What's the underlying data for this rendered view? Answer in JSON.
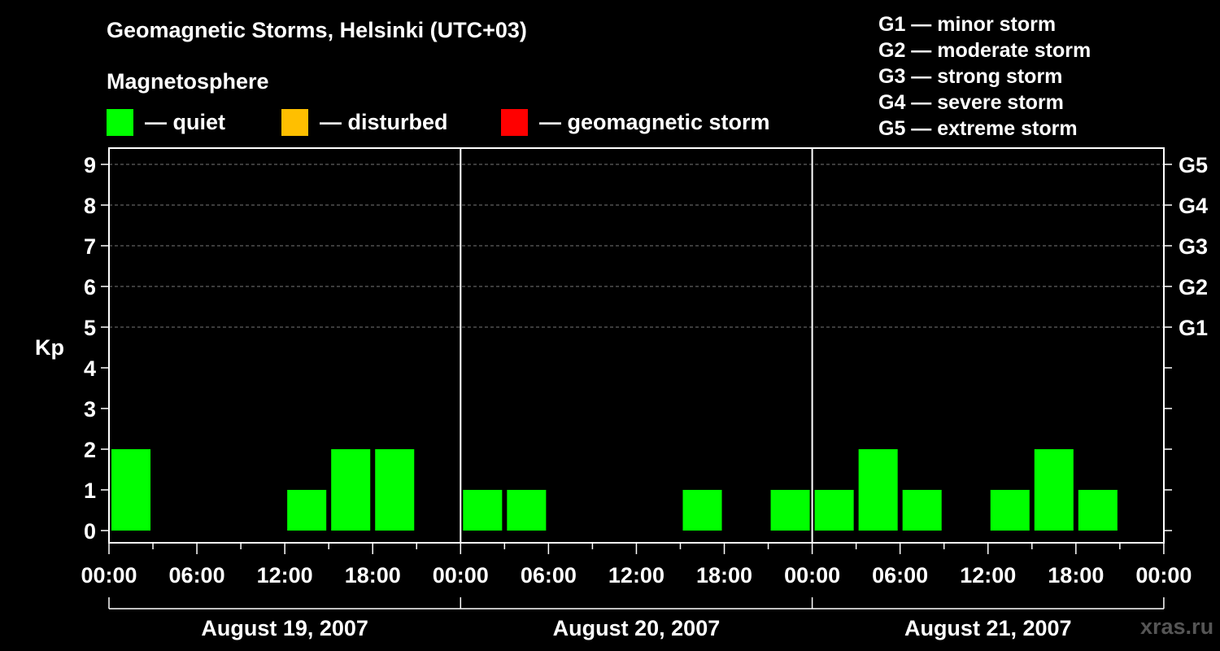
{
  "header": {
    "title": "Geomagnetic Storms, Helsinki (UTC+03)",
    "subtitle": "Magnetosphere"
  },
  "legend": [
    {
      "color": "#00ff00",
      "label": "— quiet"
    },
    {
      "color": "#ffbf00",
      "label": "— disturbed"
    },
    {
      "color": "#ff0000",
      "label": "— geomagnetic storm"
    }
  ],
  "storm_scale": [
    "G1 — minor storm",
    "G2 — moderate storm",
    "G3 — strong storm",
    "G4 — severe storm",
    "G5 — extreme storm"
  ],
  "watermark": "xras.ru",
  "chart_data": {
    "type": "bar",
    "title": "Geomagnetic Storms, Helsinki (UTC+03)",
    "ylabel": "Kp",
    "ylim": [
      0,
      9
    ],
    "yticks": [
      0,
      1,
      2,
      3,
      4,
      5,
      6,
      7,
      8,
      9
    ],
    "right_axis": [
      {
        "kp": 5,
        "label": "G1"
      },
      {
        "kp": 6,
        "label": "G2"
      },
      {
        "kp": 7,
        "label": "G3"
      },
      {
        "kp": 8,
        "label": "G4"
      },
      {
        "kp": 9,
        "label": "G5"
      }
    ],
    "xtick_labels": [
      "00:00",
      "06:00",
      "12:00",
      "18:00",
      "00:00",
      "06:00",
      "12:00",
      "18:00",
      "00:00",
      "06:00",
      "12:00",
      "18:00",
      "00:00"
    ],
    "days": [
      "August 19, 2007",
      "August 20, 2007",
      "August 21, 2007"
    ],
    "interval_hours": 3,
    "bar_color": "#00ff00",
    "values": [
      2,
      0,
      0,
      0,
      1,
      2,
      2,
      0,
      1,
      1,
      0,
      0,
      0,
      1,
      0,
      1,
      1,
      2,
      1,
      0,
      1,
      2,
      1,
      0
    ],
    "grid": "dashed at Kp 5–9"
  }
}
